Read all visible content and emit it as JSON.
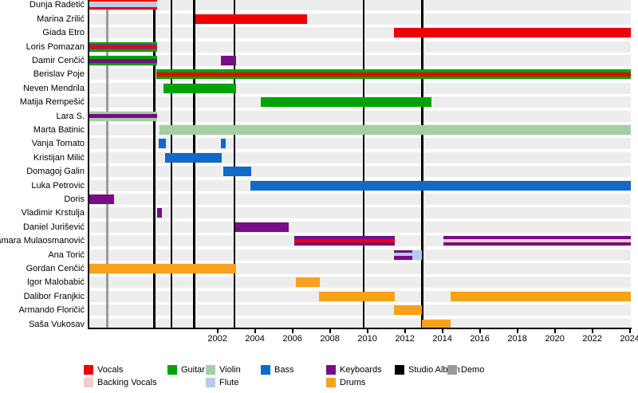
{
  "palette": {
    "vocals": "#ee0000",
    "backing_vocals": "#f5c9c9",
    "guitar": "#00a300",
    "violin": "#a4cfa4",
    "bass": "#1169c8",
    "flute": "#b9c9f0",
    "keyboards": "#780d85",
    "drums": "#f9a11b",
    "studio_album": "#000000",
    "demo": "#9b9b9b",
    "row_stripe": "#ededed",
    "axis": "#000000"
  },
  "chart_data": {
    "type": "timeline",
    "x_axis": {
      "start": 1995.08,
      "end": 2024.1,
      "ticks": [
        2002,
        2004,
        2006,
        2008,
        2010,
        2012,
        2014,
        2016,
        2018,
        2020,
        2022,
        2024
      ]
    },
    "members": [
      {
        "name": "Dunja Radetić",
        "bars": [
          {
            "s": 1995.08,
            "e": 1998.78,
            "seg": [
              [
                "vocals",
                2
              ],
              [
                "backing_vocals",
                2
              ],
              [
                "flute",
                5
              ],
              [
                "vocals",
                3
              ]
            ]
          }
        ]
      },
      {
        "name": "Marina Zrilić",
        "bars": [
          {
            "s": 2000.84,
            "e": 2006.79,
            "seg": [
              [
                "vocals",
                1
              ]
            ]
          }
        ]
      },
      {
        "name": "Giada Etro",
        "bars": [
          {
            "s": 2011.41,
            "e": 2024.06,
            "seg": [
              [
                "vocals",
                1
              ]
            ]
          }
        ]
      },
      {
        "name": "Loris Pomazan",
        "bars": [
          {
            "s": 1995.08,
            "e": 1998.78,
            "seg": [
              [
                "guitar",
                2.5
              ],
              [
                "bass",
                1
              ],
              [
                "vocals",
                4
              ],
              [
                "bass",
                1
              ],
              [
                "guitar",
                2.5
              ]
            ]
          }
        ]
      },
      {
        "name": "Damir Cenčić",
        "bars": [
          {
            "s": 1995.08,
            "e": 1998.78,
            "seg": [
              [
                "guitar",
                3.5
              ],
              [
                "keyboards",
                5
              ],
              [
                "guitar",
                3.5
              ]
            ]
          },
          {
            "s": 2002.19,
            "e": 2003.0,
            "seg": [
              [
                "keyboards",
                1
              ]
            ]
          }
        ]
      },
      {
        "name": "Berislav Poje",
        "bars": [
          {
            "s": 1998.76,
            "e": 2024.06,
            "seg": [
              [
                "guitar",
                3.5
              ],
              [
                "vocals",
                5
              ],
              [
                "guitar",
                3.5
              ]
            ]
          }
        ]
      },
      {
        "name": "Neven Mendrila",
        "bars": [
          {
            "s": 1999.14,
            "e": 2002.98,
            "seg": [
              [
                "guitar",
                1
              ]
            ]
          }
        ]
      },
      {
        "name": "Matija Rempešić",
        "bars": [
          {
            "s": 2004.31,
            "e": 2013.42,
            "seg": [
              [
                "guitar",
                1
              ]
            ]
          }
        ]
      },
      {
        "name": "Lara S.",
        "bars": [
          {
            "s": 1995.08,
            "e": 1998.8,
            "seg": [
              [
                "violin",
                3.5
              ],
              [
                "keyboards",
                5
              ],
              [
                "violin",
                3.5
              ]
            ]
          }
        ]
      },
      {
        "name": "Marta Batinic",
        "bars": [
          {
            "s": 1998.89,
            "e": 2024.06,
            "seg": [
              [
                "violin",
                1
              ]
            ]
          }
        ]
      },
      {
        "name": "Vanja Tomato",
        "bars": [
          {
            "s": 1998.86,
            "e": 1999.25,
            "seg": [
              [
                "bass",
                1
              ]
            ]
          },
          {
            "s": 2002.19,
            "e": 2002.44,
            "seg": [
              [
                "bass",
                1
              ]
            ]
          }
        ]
      },
      {
        "name": "Kristijan Milić",
        "bars": [
          {
            "s": 1999.19,
            "e": 2002.23,
            "seg": [
              [
                "bass",
                1
              ]
            ]
          }
        ]
      },
      {
        "name": "Domagoj Galin",
        "bars": [
          {
            "s": 2002.33,
            "e": 2003.79,
            "seg": [
              [
                "bass",
                1
              ]
            ]
          }
        ]
      },
      {
        "name": "Luka Petrovic",
        "bars": [
          {
            "s": 2003.76,
            "e": 2024.06,
            "seg": [
              [
                "bass",
                1
              ]
            ]
          }
        ]
      },
      {
        "name": "Doris",
        "bars": [
          {
            "s": 1995.12,
            "e": 1996.5,
            "seg": [
              [
                "keyboards",
                1
              ]
            ]
          }
        ]
      },
      {
        "name": "Vladimir Krstulja",
        "bars": [
          {
            "s": 1998.78,
            "e": 1999.05,
            "seg": [
              [
                "keyboards",
                1
              ]
            ]
          }
        ]
      },
      {
        "name": "Daniel Jurišević",
        "bars": [
          {
            "s": 2002.95,
            "e": 2005.79,
            "seg": [
              [
                "keyboards",
                1
              ]
            ]
          }
        ]
      },
      {
        "name": "Tamara Mulaosmanović",
        "bars": [
          {
            "s": 2006.09,
            "e": 2011.46,
            "seg": [
              [
                "keyboards",
                3.5
              ],
              [
                "vocals",
                4
              ],
              [
                "keyboards",
                4.5
              ]
            ]
          },
          {
            "s": 2014.07,
            "e": 2024.06,
            "seg": [
              [
                "keyboards",
                3.5
              ],
              [
                "backing_vocals",
                4
              ],
              [
                "keyboards",
                3.5
              ]
            ]
          }
        ]
      },
      {
        "name": "Ana Torić",
        "bars": [
          {
            "s": 2011.43,
            "e": 2012.41,
            "seg": [
              [
                "keyboards",
                3.5
              ],
              [
                "flute",
                4
              ],
              [
                "keyboards",
                4.5
              ]
            ]
          },
          {
            "s": 2012.41,
            "e": 2012.92,
            "seg": [
              [
                "flute",
                1
              ]
            ]
          }
        ]
      },
      {
        "name": "Gordan Cenčić",
        "bars": [
          {
            "s": 1995.14,
            "e": 2003.0,
            "seg": [
              [
                "drums",
                1
              ]
            ]
          }
        ]
      },
      {
        "name": "Igor Malobabić",
        "bars": [
          {
            "s": 2006.17,
            "e": 2007.47,
            "seg": [
              [
                "drums",
                1
              ]
            ]
          }
        ]
      },
      {
        "name": "Dalibor Franjkic",
        "bars": [
          {
            "s": 2007.42,
            "e": 2011.46,
            "seg": [
              [
                "drums",
                1
              ]
            ]
          },
          {
            "s": 2014.43,
            "e": 2024.06,
            "seg": [
              [
                "drums",
                1
              ]
            ]
          }
        ]
      },
      {
        "name": "Armando Floričić",
        "bars": [
          {
            "s": 2011.42,
            "e": 2012.92,
            "seg": [
              [
                "drums",
                1
              ]
            ]
          }
        ]
      },
      {
        "name": "Saša Vukosav",
        "bars": [
          {
            "s": 2012.92,
            "e": 2014.43,
            "seg": [
              [
                "drums",
                1
              ]
            ]
          }
        ]
      }
    ],
    "events": {
      "demo": [
        1996.13
      ],
      "studio_albums": [
        1998.64,
        1999.55,
        2000.76,
        2002.9,
        2009.8,
        2012.92
      ]
    },
    "legend": [
      [
        {
          "label": "Vocals",
          "color": "vocals"
        },
        {
          "label": "Backing Vocals",
          "color": "backing_vocals"
        }
      ],
      [
        {
          "label": "Guitar",
          "color": "guitar"
        }
      ],
      [
        {
          "label": "Violin",
          "color": "violin"
        },
        {
          "label": "Flute",
          "color": "flute"
        }
      ],
      [
        {
          "label": "Bass",
          "color": "bass"
        }
      ],
      [
        {
          "label": "Keyboards",
          "color": "keyboards"
        },
        {
          "label": "Drums",
          "color": "drums"
        }
      ],
      [
        {
          "label": "Studio Album",
          "color": "studio_album"
        }
      ],
      [
        {
          "label": "Demo",
          "color": "demo"
        }
      ]
    ]
  }
}
